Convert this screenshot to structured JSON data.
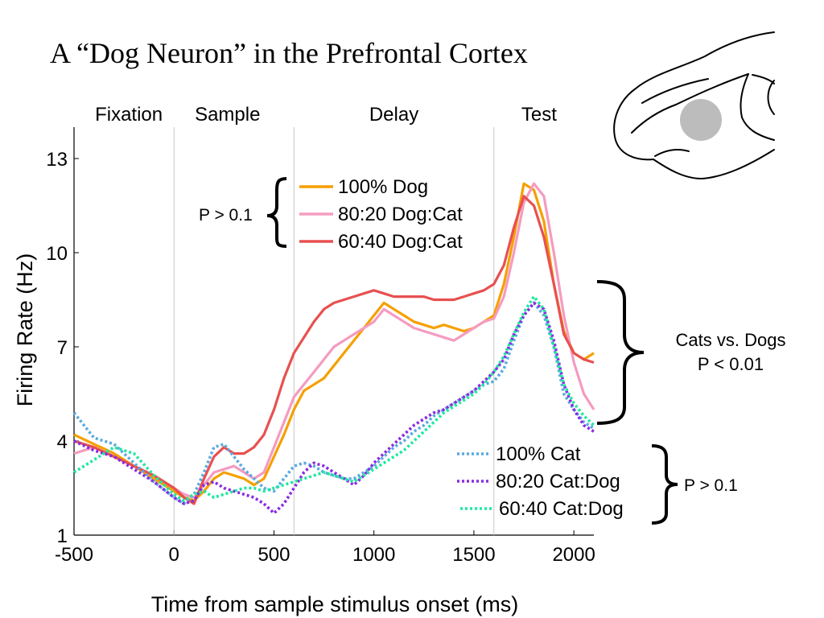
{
  "slide": {
    "title": "A “Dog Neuron” in the Prefrontal Cortex"
  },
  "brain_illustration": {
    "icon": "monkey-brain-lateral-view-icon",
    "recording_site_color": "#bcbcbc"
  },
  "chart_data": {
    "type": "line",
    "title": "",
    "xlabel": "Time from sample stimulus onset  (ms)",
    "ylabel": "Firing Rate  (Hz)",
    "xlim": [
      -500,
      2100
    ],
    "ylim": [
      1,
      14
    ],
    "x_ticks": [
      -500,
      0,
      500,
      1000,
      1500,
      2000
    ],
    "x_tick_labels": [
      "-500",
      "0",
      "500",
      "1000",
      "1500",
      "2000"
    ],
    "y_ticks": [
      1,
      4,
      7,
      10,
      13
    ],
    "y_tick_labels": [
      "1",
      "4",
      "7",
      "10",
      "13"
    ],
    "grid": false,
    "epoch_boundaries_ms": [
      0,
      600,
      1600
    ],
    "epochs": [
      "Fixation",
      "Sample",
      "Delay",
      "Test"
    ],
    "x": [
      -500,
      -400,
      -300,
      -200,
      -100,
      0,
      50,
      100,
      150,
      200,
      250,
      300,
      350,
      400,
      450,
      500,
      550,
      600,
      650,
      700,
      750,
      800,
      850,
      900,
      950,
      1000,
      1050,
      1100,
      1150,
      1200,
      1250,
      1300,
      1350,
      1400,
      1450,
      1500,
      1550,
      1600,
      1650,
      1700,
      1750,
      1800,
      1850,
      1900,
      1950,
      2000,
      2050,
      2100
    ],
    "series": [
      {
        "name": "100% Dog",
        "color": "#f5a000",
        "dash": "solid",
        "values": [
          4.2,
          3.9,
          3.6,
          3.2,
          2.8,
          2.4,
          2.2,
          2.1,
          2.4,
          2.8,
          3.0,
          2.9,
          2.8,
          2.6,
          2.8,
          3.5,
          4.2,
          5.0,
          5.6,
          5.8,
          6.0,
          6.4,
          6.8,
          7.2,
          7.6,
          8.0,
          8.4,
          8.2,
          8.0,
          7.8,
          7.7,
          7.6,
          7.7,
          7.6,
          7.5,
          7.6,
          7.8,
          8.0,
          9.0,
          10.5,
          12.2,
          12.0,
          11.0,
          9.0,
          7.5,
          6.8,
          6.6,
          6.8
        ]
      },
      {
        "name": "80:20 Dog:Cat",
        "color": "#f59bc0",
        "dash": "solid",
        "values": [
          3.6,
          3.8,
          3.5,
          3.2,
          2.9,
          2.5,
          2.3,
          2.2,
          2.6,
          3.0,
          3.1,
          3.2,
          3.0,
          2.8,
          3.0,
          3.8,
          4.6,
          5.4,
          5.8,
          6.2,
          6.6,
          7.0,
          7.2,
          7.4,
          7.6,
          7.8,
          8.2,
          8.0,
          7.8,
          7.6,
          7.5,
          7.4,
          7.3,
          7.2,
          7.4,
          7.6,
          7.8,
          7.9,
          8.6,
          10.0,
          11.6,
          12.2,
          11.8,
          10.0,
          8.0,
          6.5,
          5.5,
          5.0
        ]
      },
      {
        "name": "60:40 Dog:Cat",
        "color": "#e85050",
        "dash": "solid",
        "values": [
          4.0,
          3.8,
          3.5,
          3.2,
          2.9,
          2.5,
          2.2,
          2.0,
          2.8,
          3.5,
          3.8,
          3.6,
          3.6,
          3.8,
          4.2,
          5.0,
          6.0,
          6.8,
          7.3,
          7.8,
          8.2,
          8.4,
          8.5,
          8.6,
          8.7,
          8.8,
          8.7,
          8.6,
          8.6,
          8.6,
          8.6,
          8.5,
          8.5,
          8.5,
          8.6,
          8.7,
          8.8,
          9.0,
          9.6,
          10.8,
          11.8,
          11.5,
          10.5,
          9.0,
          7.4,
          6.8,
          6.6,
          6.5
        ]
      },
      {
        "name": "100% Cat",
        "color": "#5aaae0",
        "dash": "dotted",
        "values": [
          4.9,
          4.1,
          3.9,
          3.3,
          2.7,
          2.2,
          2.0,
          2.3,
          3.0,
          3.8,
          3.9,
          3.5,
          3.1,
          2.8,
          2.5,
          2.4,
          2.8,
          3.2,
          3.3,
          3.2,
          3.0,
          2.9,
          2.8,
          2.8,
          3.0,
          3.2,
          3.5,
          3.8,
          4.0,
          4.3,
          4.5,
          4.8,
          5.0,
          5.2,
          5.4,
          5.6,
          5.8,
          5.9,
          6.3,
          7.2,
          8.0,
          8.4,
          8.0,
          7.0,
          5.5,
          5.0,
          4.6,
          4.4
        ]
      },
      {
        "name": "80:20 Cat:Dog",
        "color": "#8a2be2",
        "dash": "dotted",
        "values": [
          4.0,
          3.7,
          3.5,
          3.1,
          2.7,
          2.2,
          2.0,
          2.1,
          2.6,
          2.7,
          2.5,
          2.4,
          2.3,
          2.2,
          2.0,
          1.7,
          2.0,
          2.5,
          3.0,
          3.3,
          3.2,
          3.0,
          2.8,
          2.6,
          2.9,
          3.3,
          3.6,
          3.9,
          4.2,
          4.5,
          4.7,
          4.9,
          5.0,
          5.2,
          5.4,
          5.6,
          5.9,
          6.2,
          6.6,
          7.4,
          8.0,
          8.4,
          8.2,
          7.2,
          5.8,
          5.0,
          4.5,
          4.3
        ]
      },
      {
        "name": "60:40 Cat:Dog",
        "color": "#20e8a0",
        "dash": "dotted",
        "values": [
          3.0,
          3.4,
          3.8,
          3.6,
          2.9,
          2.3,
          2.1,
          2.3,
          2.4,
          2.2,
          2.3,
          2.4,
          2.5,
          2.5,
          2.4,
          2.5,
          2.6,
          2.7,
          2.8,
          2.9,
          3.0,
          2.9,
          2.8,
          2.7,
          2.9,
          3.1,
          3.3,
          3.5,
          3.7,
          4.0,
          4.3,
          4.6,
          4.9,
          5.1,
          5.3,
          5.5,
          5.8,
          6.2,
          6.7,
          7.4,
          8.1,
          8.6,
          8.2,
          7.0,
          5.8,
          5.2,
          4.8,
          4.5
        ]
      }
    ],
    "annotations": [
      {
        "id": "dog-group",
        "text": "P > 0.1"
      },
      {
        "id": "cats-vs-dogs",
        "lines": [
          "Cats vs. Dogs",
          "P < 0.01"
        ]
      },
      {
        "id": "cat-group",
        "text": "P > 0.1"
      }
    ]
  }
}
